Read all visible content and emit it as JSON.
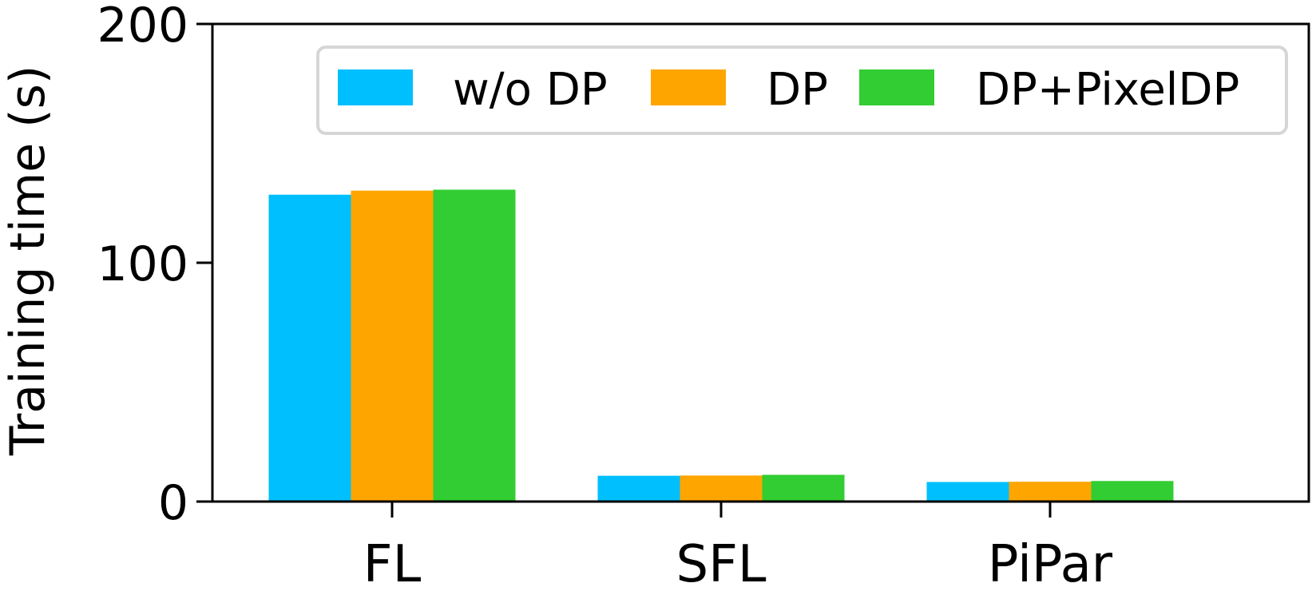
{
  "chart_data": {
    "type": "bar",
    "title": "",
    "xlabel": "",
    "ylabel": "Training time (s)",
    "categories": [
      "FL",
      "SFL",
      "PiPar"
    ],
    "series": [
      {
        "name": "w/o DP",
        "color": "#00bfff",
        "values": [
          128.5,
          10.8,
          8.2
        ]
      },
      {
        "name": "DP",
        "color": "#ffa500",
        "values": [
          130.2,
          10.9,
          8.3
        ]
      },
      {
        "name": "DP+PixelDP",
        "color": "#32cd32",
        "values": [
          130.6,
          11.2,
          8.6
        ]
      }
    ],
    "ylim": [
      0,
      200
    ],
    "yticks": [
      "0",
      "100",
      "200"
    ],
    "grid": false,
    "legend_position": "top-right"
  }
}
